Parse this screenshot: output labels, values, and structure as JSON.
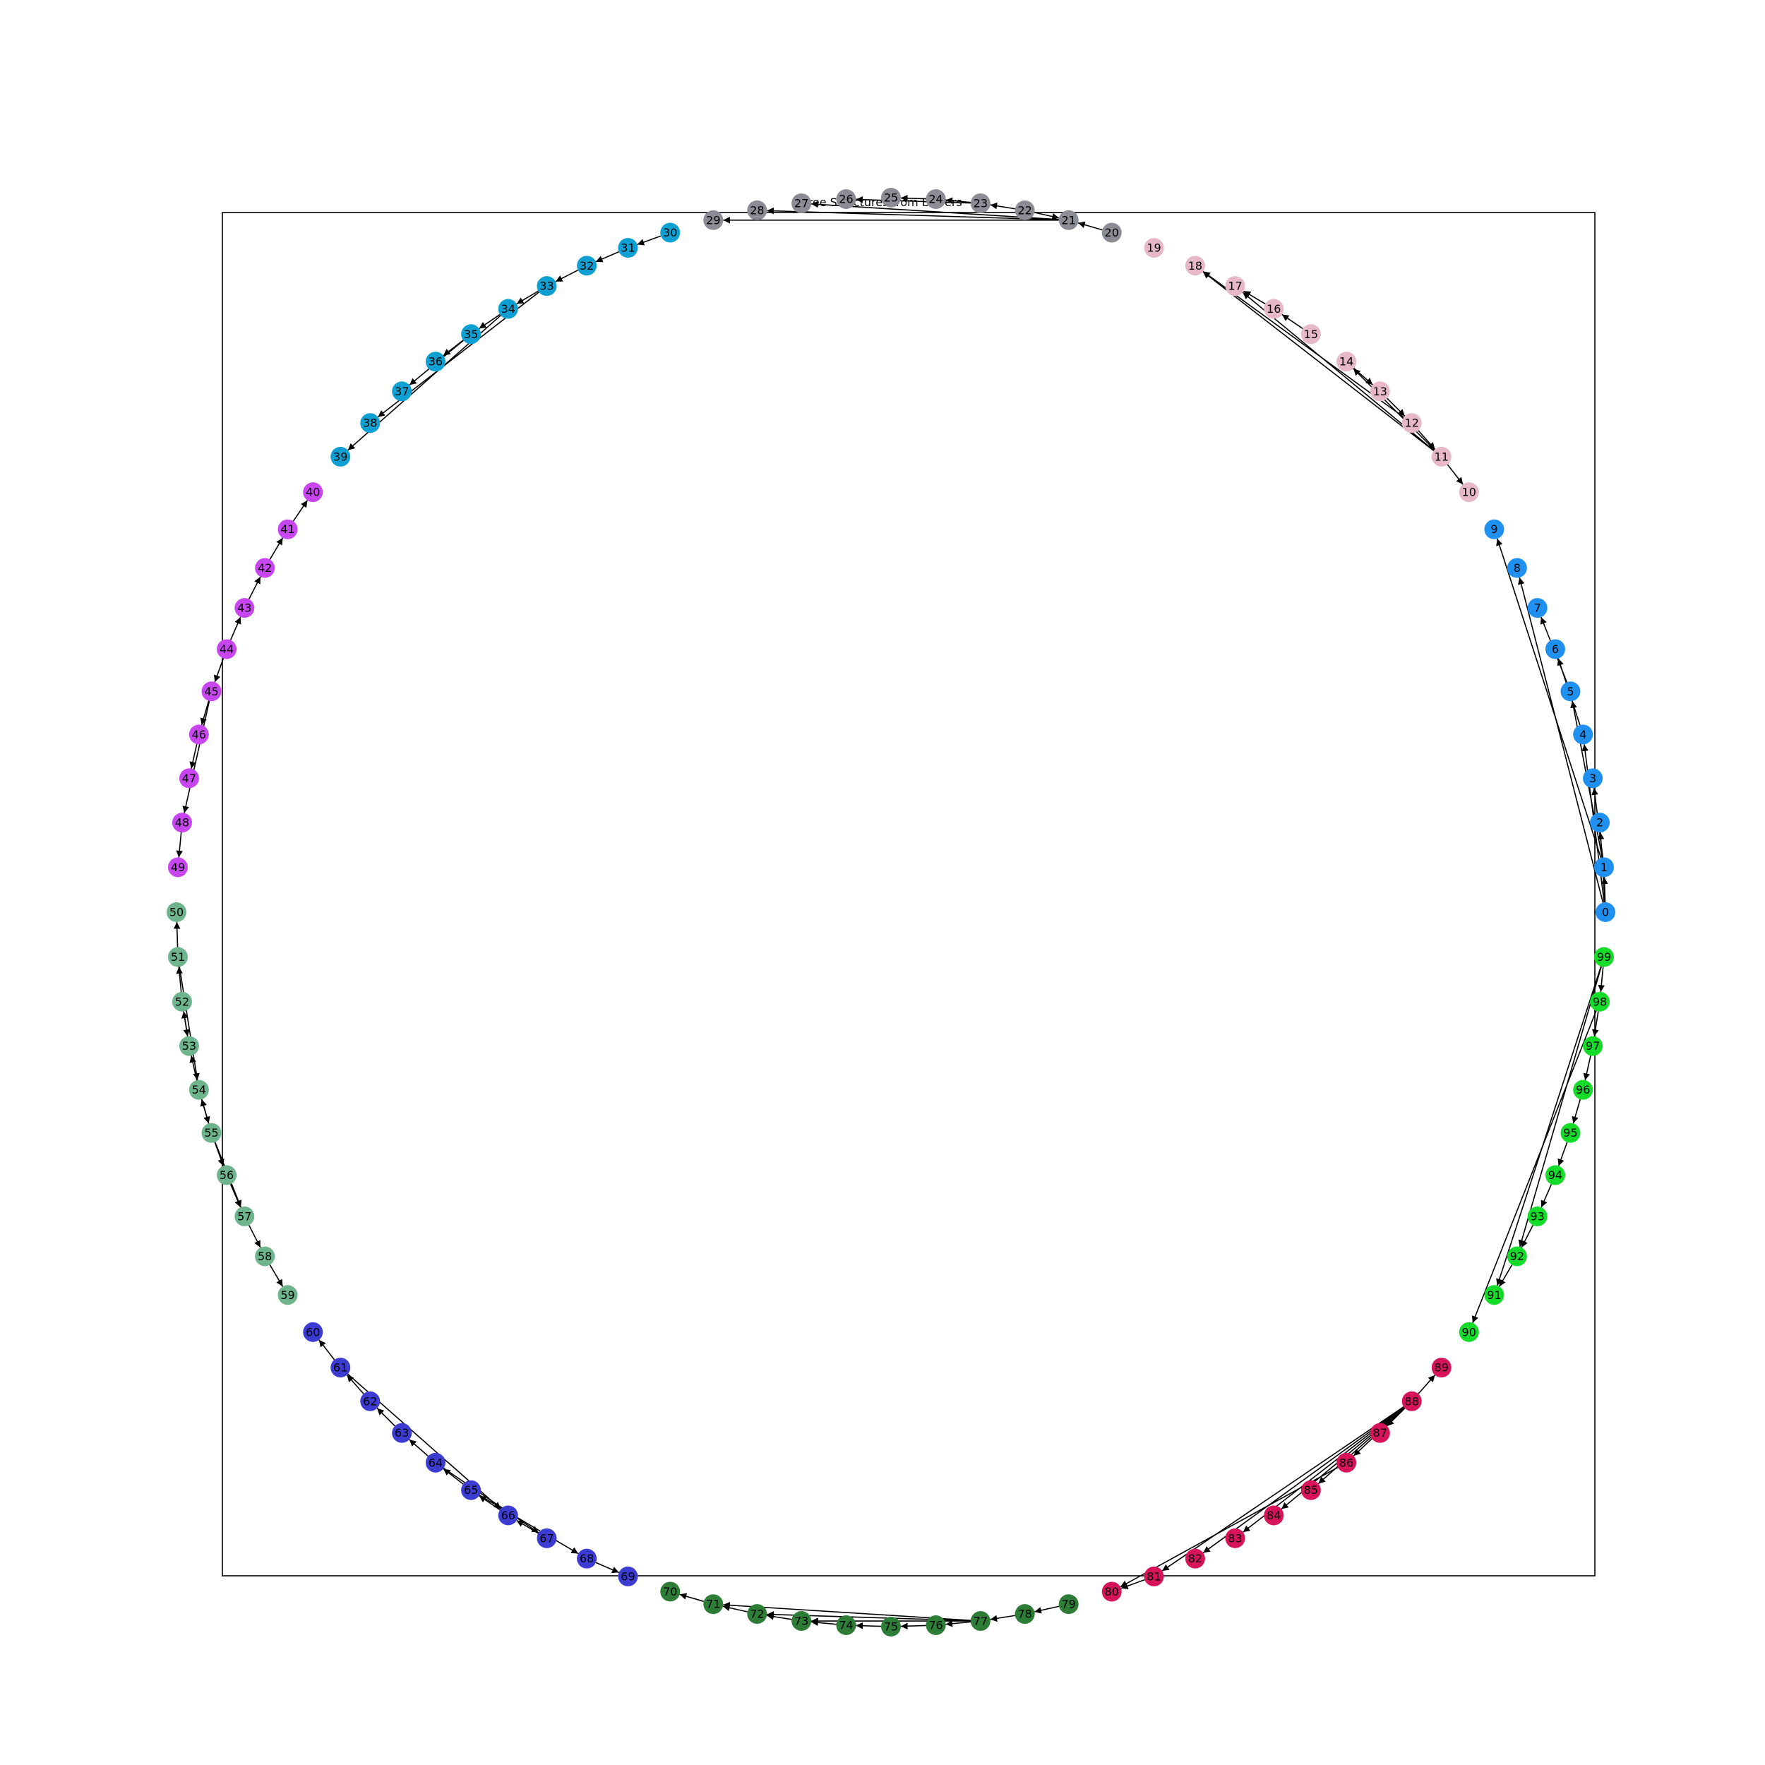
{
  "title": "Tree Structures from Buffers",
  "groups": [
    {
      "nodes": [
        0,
        1,
        2,
        3,
        4,
        5,
        6,
        7,
        8,
        9
      ],
      "color": "#1f8ff0"
    },
    {
      "nodes": [
        10,
        11,
        12,
        13,
        14,
        15,
        16,
        17,
        18,
        19
      ],
      "color": "#e6b8c8"
    },
    {
      "nodes": [
        20,
        21,
        22,
        23,
        24,
        25,
        26,
        27,
        28,
        29
      ],
      "color": "#8c8c96"
    },
    {
      "nodes": [
        30,
        31,
        32,
        33,
        34,
        35,
        36,
        37,
        38,
        39
      ],
      "color": "#0ea0d2"
    },
    {
      "nodes": [
        40,
        41,
        42,
        43,
        44,
        45,
        46,
        47,
        48,
        49
      ],
      "color": "#c846f0"
    },
    {
      "nodes": [
        50,
        51,
        52,
        53,
        54,
        55,
        56,
        57,
        58,
        59
      ],
      "color": "#6eb48c"
    },
    {
      "nodes": [
        60,
        61,
        62,
        63,
        64,
        65,
        66,
        67,
        68,
        69
      ],
      "color": "#3c3cd2"
    },
    {
      "nodes": [
        70,
        71,
        72,
        73,
        74,
        75,
        76,
        77,
        78,
        79
      ],
      "color": "#2d7d37"
    },
    {
      "nodes": [
        80,
        81,
        82,
        83,
        84,
        85,
        86,
        87,
        88,
        89
      ],
      "color": "#d7145a"
    },
    {
      "nodes": [
        90,
        91,
        92,
        93,
        94,
        95,
        96,
        97,
        98,
        99
      ],
      "color": "#14dc28"
    }
  ],
  "edges": [
    [
      0,
      1
    ],
    [
      0,
      2
    ],
    [
      1,
      3
    ],
    [
      0,
      4
    ],
    [
      1,
      5
    ],
    [
      4,
      6
    ],
    [
      5,
      7
    ],
    [
      0,
      8
    ],
    [
      1,
      9
    ],
    [
      11,
      10
    ],
    [
      12,
      11
    ],
    [
      13,
      12
    ],
    [
      14,
      13
    ],
    [
      11,
      14
    ],
    [
      15,
      16
    ],
    [
      16,
      17
    ],
    [
      11,
      17
    ],
    [
      11,
      18
    ],
    [
      12,
      18
    ],
    [
      20,
      21
    ],
    [
      22,
      21
    ],
    [
      22,
      23
    ],
    [
      23,
      24
    ],
    [
      24,
      25
    ],
    [
      23,
      26
    ],
    [
      21,
      27
    ],
    [
      21,
      28
    ],
    [
      21,
      29
    ],
    [
      30,
      31
    ],
    [
      31,
      32
    ],
    [
      32,
      33
    ],
    [
      33,
      34
    ],
    [
      34,
      35
    ],
    [
      35,
      36
    ],
    [
      35,
      37
    ],
    [
      33,
      38
    ],
    [
      34,
      39
    ],
    [
      41,
      40
    ],
    [
      42,
      41
    ],
    [
      43,
      42
    ],
    [
      44,
      43
    ],
    [
      44,
      45
    ],
    [
      45,
      46
    ],
    [
      46,
      47
    ],
    [
      45,
      48
    ],
    [
      48,
      49
    ],
    [
      51,
      50
    ],
    [
      52,
      51
    ],
    [
      53,
      52
    ],
    [
      52,
      53
    ],
    [
      54,
      53
    ],
    [
      51,
      54
    ],
    [
      55,
      54
    ],
    [
      54,
      55
    ],
    [
      55,
      56
    ],
    [
      56,
      57
    ],
    [
      57,
      58
    ],
    [
      58,
      59
    ],
    [
      55,
      57
    ],
    [
      61,
      60
    ],
    [
      62,
      61
    ],
    [
      63,
      62
    ],
    [
      64,
      63
    ],
    [
      65,
      64
    ],
    [
      66,
      65
    ],
    [
      67,
      66
    ],
    [
      64,
      67
    ],
    [
      65,
      68
    ],
    [
      68,
      69
    ],
    [
      61,
      66
    ],
    [
      71,
      70
    ],
    [
      72,
      71
    ],
    [
      73,
      72
    ],
    [
      74,
      73
    ],
    [
      75,
      74
    ],
    [
      76,
      75
    ],
    [
      77,
      76
    ],
    [
      77,
      71
    ],
    [
      77,
      72
    ],
    [
      77,
      73
    ],
    [
      78,
      77
    ],
    [
      79,
      78
    ],
    [
      81,
      80
    ],
    [
      88,
      81
    ],
    [
      88,
      82
    ],
    [
      88,
      83
    ],
    [
      88,
      84
    ],
    [
      88,
      85
    ],
    [
      88,
      86
    ],
    [
      88,
      87
    ],
    [
      88,
      89
    ],
    [
      86,
      80
    ],
    [
      99,
      98
    ],
    [
      98,
      97
    ],
    [
      97,
      96
    ],
    [
      96,
      95
    ],
    [
      95,
      94
    ],
    [
      94,
      93
    ],
    [
      93,
      92
    ],
    [
      92,
      91
    ],
    [
      99,
      91
    ],
    [
      98,
      90
    ],
    [
      99,
      92
    ]
  ]
}
